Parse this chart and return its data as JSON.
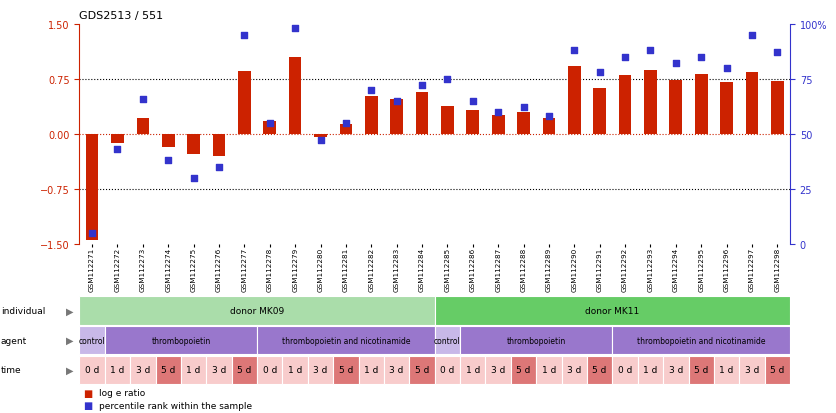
{
  "title": "GDS2513 / 551",
  "samples": [
    "GSM112271",
    "GSM112272",
    "GSM112273",
    "GSM112274",
    "GSM112275",
    "GSM112276",
    "GSM112277",
    "GSM112278",
    "GSM112279",
    "GSM112280",
    "GSM112281",
    "GSM112282",
    "GSM112283",
    "GSM112284",
    "GSM112285",
    "GSM112286",
    "GSM112287",
    "GSM112288",
    "GSM112289",
    "GSM112290",
    "GSM112291",
    "GSM112292",
    "GSM112293",
    "GSM112294",
    "GSM112295",
    "GSM112296",
    "GSM112297",
    "GSM112298"
  ],
  "log_ratio": [
    -1.45,
    -0.12,
    0.22,
    -0.18,
    -0.28,
    -0.3,
    0.86,
    0.18,
    1.05,
    -0.05,
    0.13,
    0.52,
    0.48,
    0.57,
    0.38,
    0.32,
    0.26,
    0.3,
    0.22,
    0.93,
    0.62,
    0.8,
    0.87,
    0.73,
    0.81,
    0.7,
    0.84,
    0.72
  ],
  "percentile": [
    5,
    43,
    66,
    38,
    30,
    35,
    95,
    55,
    98,
    47,
    55,
    70,
    65,
    72,
    75,
    65,
    60,
    62,
    58,
    88,
    78,
    85,
    88,
    82,
    85,
    80,
    95,
    87
  ],
  "bar_color": "#cc2200",
  "dot_color": "#3333cc",
  "yticks_left": [
    -1.5,
    -0.75,
    0.0,
    0.75,
    1.5
  ],
  "yticks_right": [
    0,
    25,
    50,
    75,
    100
  ],
  "background_color": "#ffffff",
  "ylim": [
    -1.5,
    1.5
  ],
  "right_ylim": [
    0,
    100
  ],
  "individual_row": [
    {
      "label": "donor MK09",
      "start": 0,
      "end": 14,
      "color": "#aaddaa"
    },
    {
      "label": "donor MK11",
      "start": 14,
      "end": 28,
      "color": "#66cc66"
    }
  ],
  "agent_row": [
    {
      "label": "control",
      "start": 0,
      "end": 1,
      "color": "#c8b8e8"
    },
    {
      "label": "thrombopoietin",
      "start": 1,
      "end": 7,
      "color": "#9977cc"
    },
    {
      "label": "thrombopoietin and nicotinamide",
      "start": 7,
      "end": 14,
      "color": "#9977cc"
    },
    {
      "label": "control",
      "start": 14,
      "end": 15,
      "color": "#c8b8e8"
    },
    {
      "label": "thrombopoietin",
      "start": 15,
      "end": 21,
      "color": "#9977cc"
    },
    {
      "label": "thrombopoietin and nicotinamide",
      "start": 21,
      "end": 28,
      "color": "#9977cc"
    }
  ],
  "time_row": [
    {
      "label": "0 d",
      "start": 0,
      "end": 1,
      "color": "#f8cccc"
    },
    {
      "label": "1 d",
      "start": 1,
      "end": 2,
      "color": "#f8cccc"
    },
    {
      "label": "3 d",
      "start": 2,
      "end": 3,
      "color": "#f8cccc"
    },
    {
      "label": "5 d",
      "start": 3,
      "end": 4,
      "color": "#dd7777"
    },
    {
      "label": "1 d",
      "start": 4,
      "end": 5,
      "color": "#f8cccc"
    },
    {
      "label": "3 d",
      "start": 5,
      "end": 6,
      "color": "#f8cccc"
    },
    {
      "label": "5 d",
      "start": 6,
      "end": 7,
      "color": "#dd7777"
    },
    {
      "label": "0 d",
      "start": 7,
      "end": 8,
      "color": "#f8cccc"
    },
    {
      "label": "1 d",
      "start": 8,
      "end": 9,
      "color": "#f8cccc"
    },
    {
      "label": "3 d",
      "start": 9,
      "end": 10,
      "color": "#f8cccc"
    },
    {
      "label": "5 d",
      "start": 10,
      "end": 11,
      "color": "#dd7777"
    },
    {
      "label": "1 d",
      "start": 11,
      "end": 12,
      "color": "#f8cccc"
    },
    {
      "label": "3 d",
      "start": 12,
      "end": 13,
      "color": "#f8cccc"
    },
    {
      "label": "5 d",
      "start": 13,
      "end": 14,
      "color": "#dd7777"
    },
    {
      "label": "0 d",
      "start": 14,
      "end": 15,
      "color": "#f8cccc"
    },
    {
      "label": "1 d",
      "start": 15,
      "end": 16,
      "color": "#f8cccc"
    },
    {
      "label": "3 d",
      "start": 16,
      "end": 17,
      "color": "#f8cccc"
    },
    {
      "label": "5 d",
      "start": 17,
      "end": 18,
      "color": "#dd7777"
    },
    {
      "label": "1 d",
      "start": 18,
      "end": 19,
      "color": "#f8cccc"
    },
    {
      "label": "3 d",
      "start": 19,
      "end": 20,
      "color": "#f8cccc"
    },
    {
      "label": "5 d",
      "start": 20,
      "end": 21,
      "color": "#dd7777"
    },
    {
      "label": "0 d",
      "start": 21,
      "end": 22,
      "color": "#f8cccc"
    },
    {
      "label": "1 d",
      "start": 22,
      "end": 23,
      "color": "#f8cccc"
    },
    {
      "label": "3 d",
      "start": 23,
      "end": 24,
      "color": "#f8cccc"
    },
    {
      "label": "5 d",
      "start": 24,
      "end": 25,
      "color": "#dd7777"
    },
    {
      "label": "1 d",
      "start": 25,
      "end": 26,
      "color": "#f8cccc"
    },
    {
      "label": "3 d",
      "start": 26,
      "end": 27,
      "color": "#f8cccc"
    },
    {
      "label": "5 d",
      "start": 27,
      "end": 28,
      "color": "#dd7777"
    }
  ],
  "legend_items": [
    {
      "label": "log e ratio",
      "color": "#cc2200"
    },
    {
      "label": "percentile rank within the sample",
      "color": "#3333cc"
    }
  ]
}
